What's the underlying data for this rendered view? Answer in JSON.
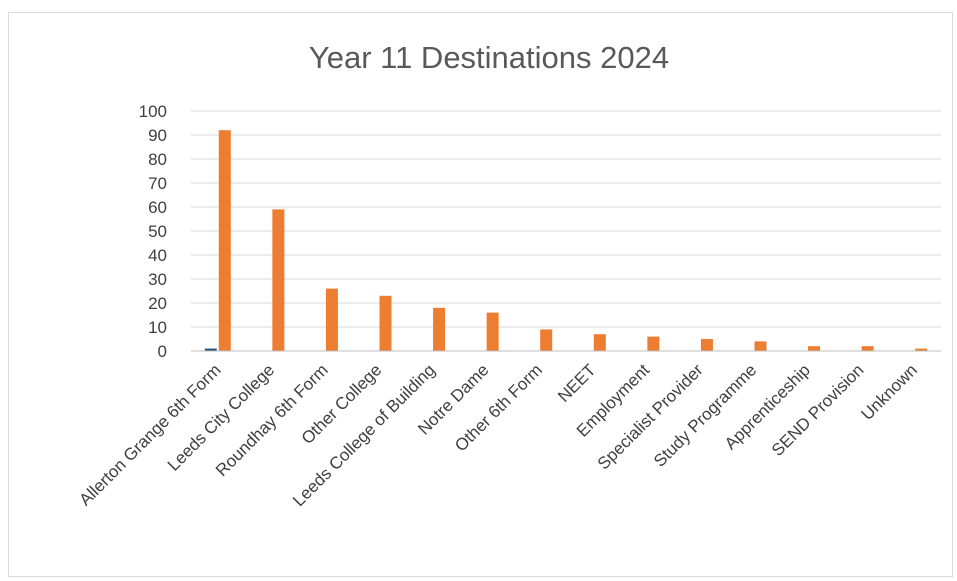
{
  "chart_data": {
    "type": "bar",
    "title": "Year 11 Destinations 2024",
    "xlabel": "",
    "ylabel": "",
    "ylim": [
      0,
      100
    ],
    "yticks": [
      0,
      10,
      20,
      30,
      40,
      50,
      60,
      70,
      80,
      90,
      100
    ],
    "grid": true,
    "legend": "none",
    "categories": [
      "Allerton Grange 6th Form",
      "Leeds City College",
      "Roundhay 6th Form",
      "Other College",
      "Leeds College of Building",
      "Notre Dame",
      "Other 6th Form",
      "NEET",
      "Employment",
      "Specialist Provider",
      "Study Programme",
      "Apprenticeship",
      "SEND Provision",
      "Unknown"
    ],
    "series": [
      {
        "color": "#1f4e79",
        "values": [
          1,
          0,
          0,
          0,
          0,
          0,
          0,
          0,
          0,
          0,
          0,
          0,
          0,
          0
        ]
      },
      {
        "color": "#ed7d31",
        "values": [
          92,
          59,
          26,
          23,
          18,
          16,
          9,
          7,
          6,
          5,
          4,
          2,
          2,
          1
        ]
      }
    ]
  }
}
